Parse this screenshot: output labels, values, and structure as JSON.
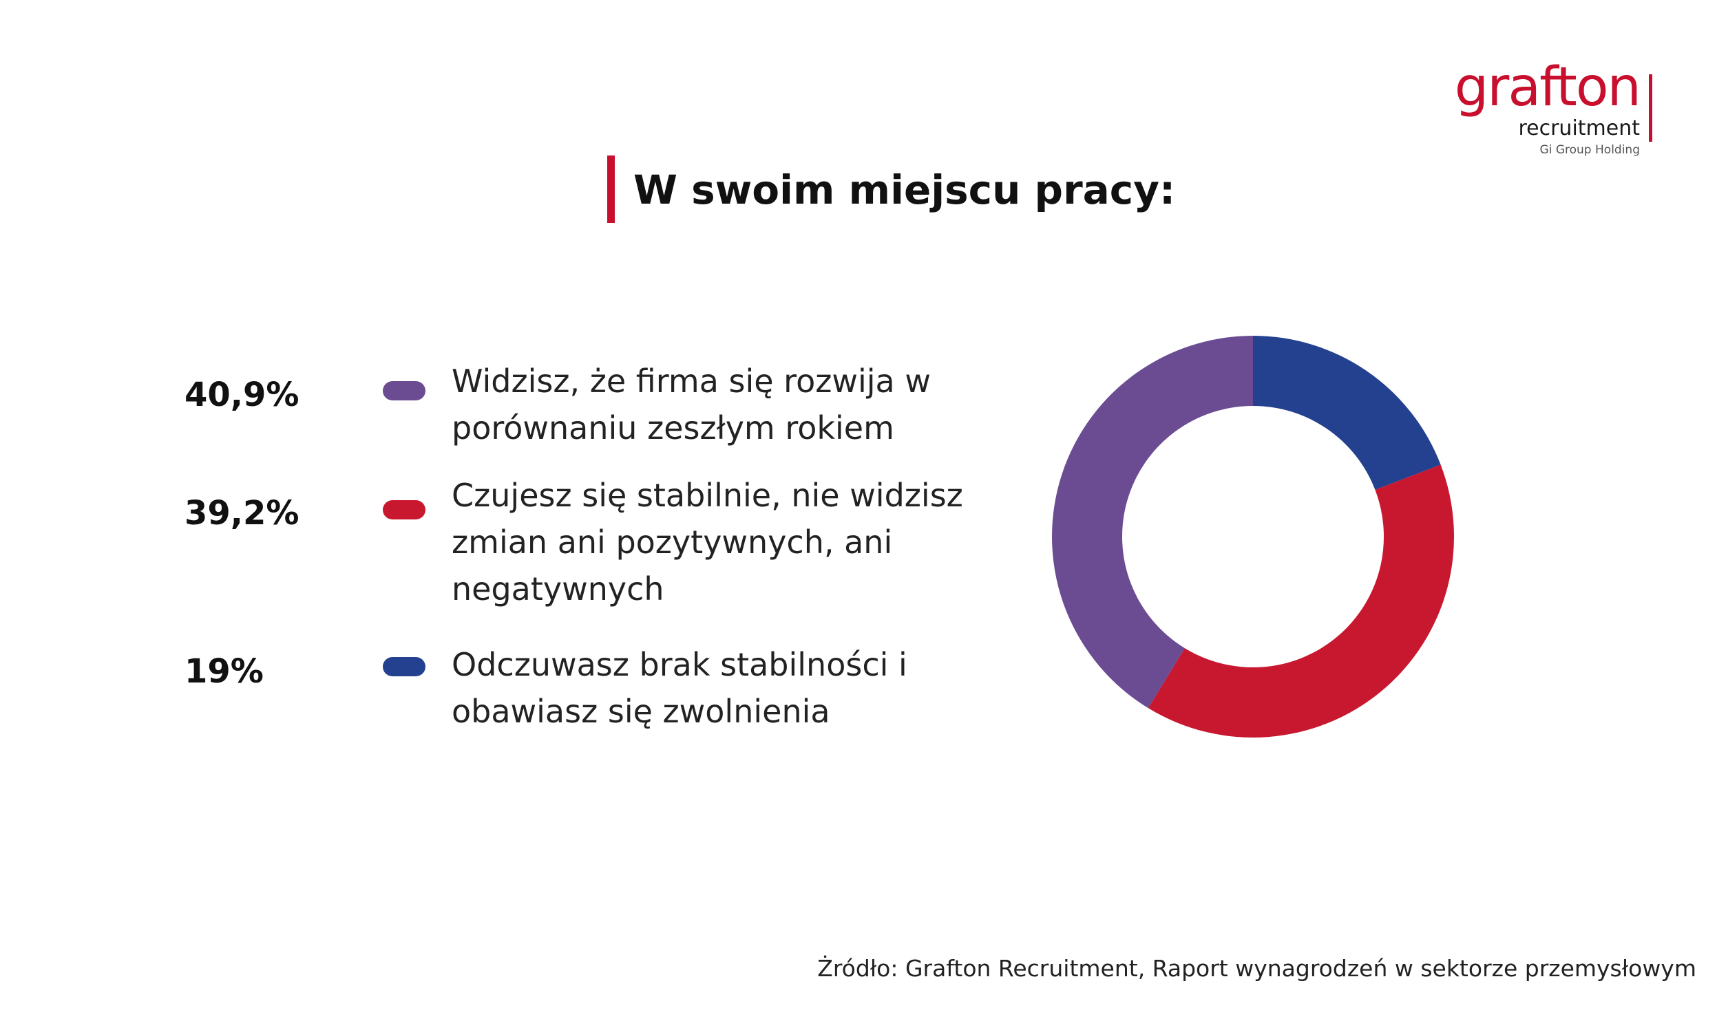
{
  "logo": {
    "name": "grafton",
    "subtitle": "recruitment",
    "holding": "Gi Group Holding",
    "color": "#c8102e"
  },
  "title": "W swoim miejscu pracy:",
  "accent_color": "#c8102e",
  "source": "Żródło: Grafton Recruitment, Raport wynagrodzeń w sektorze przemysłowym",
  "legend": [
    {
      "percent": "40,9%",
      "label": "Widzisz, że firma się rozwija w porównaniu zeszłym rokiem",
      "color": "#6b4c93"
    },
    {
      "percent": "39,2%",
      "label": "Czujesz się stabilnie, nie widzisz zmian ani pozytywnych, ani negatywnych",
      "color": "#c8182f"
    },
    {
      "percent": "19%",
      "label": "Odczuwasz brak stabilności i obawiasz się zwolnienia",
      "color": "#23418f"
    }
  ],
  "chart_data": {
    "type": "pie",
    "donut": true,
    "title": "W swoim miejscu pracy:",
    "categories": [
      "Widzisz, że firma się rozwija w porównaniu zeszłym rokiem",
      "Czujesz się stabilnie, nie widzisz zmian ani pozytywnych, ani negatywnych",
      "Odczuwasz brak stabilności i obawiasz się zwolnienia"
    ],
    "values": [
      40.9,
      39.2,
      19
    ],
    "colors": [
      "#6b4c93",
      "#c8182f",
      "#23418f"
    ],
    "legend": "left"
  }
}
